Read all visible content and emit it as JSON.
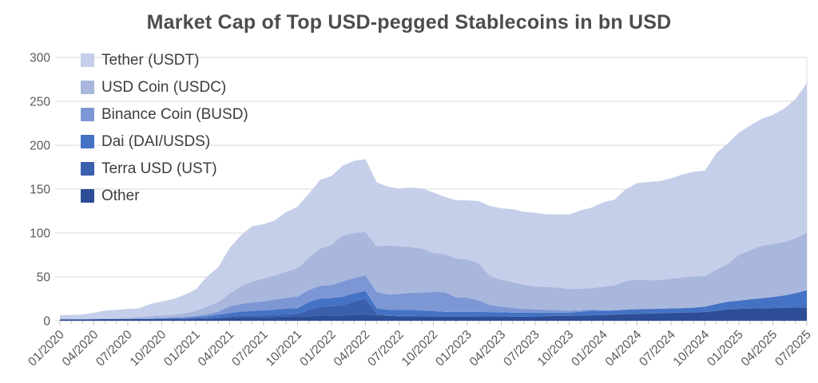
{
  "chart_data": {
    "type": "area",
    "stacked": true,
    "title": "Market Cap of Top USD-pegged Stablecoins in bn USD",
    "unit": "bn USD",
    "ylabel": "",
    "xlabel": "",
    "ylim": [
      0,
      300
    ],
    "y_ticks": [
      0,
      50,
      100,
      150,
      200,
      250,
      300
    ],
    "grid": "horizontal",
    "legend_position": "top-left-inside",
    "x_monthly_range": "01/2020 to 07/2025",
    "x_tick_labels": [
      "01/2020",
      "04/2020",
      "07/2020",
      "10/2020",
      "01/2021",
      "04/2021",
      "07/2021",
      "10/2021",
      "01/2022",
      "04/2022",
      "07/2022",
      "10/2022",
      "01/2023",
      "04/2023",
      "07/2023",
      "10/2023",
      "01/2024",
      "04/2024",
      "07/2024",
      "10/2024",
      "01/2025",
      "04/2025",
      "07/2025"
    ],
    "colors": {
      "grid": "#d9d9d9",
      "tick": "#bfbfbf",
      "axis_text": "#595959",
      "title_text": "#4d4d4d"
    },
    "series_bottom_to_top": [
      {
        "name": "Other",
        "color": "#2d4e96",
        "values": [
          1.5,
          1.5,
          1.6,
          1.7,
          1.8,
          1.8,
          1.9,
          2.0,
          2.1,
          2.1,
          2.1,
          2.2,
          2.3,
          2.5,
          2.8,
          3.5,
          4.0,
          4.2,
          4.3,
          4.5,
          4.7,
          5.0,
          5.3,
          5.8,
          6.0,
          6.3,
          6.8,
          7.3,
          6.2,
          5.6,
          5.3,
          5.2,
          5.1,
          5.0,
          4.9,
          4.8,
          4.8,
          4.9,
          5.0,
          4.9,
          4.8,
          4.7,
          4.9,
          5.2,
          5.5,
          5.7,
          6.0,
          6.3,
          6.6,
          7.0,
          7.6,
          8.0,
          8.2,
          8.5,
          9.0,
          9.3,
          9.6,
          10.0,
          11.5,
          13.0,
          13.5,
          14.0,
          14.2,
          14.5,
          14.8,
          15.0,
          15.3
        ]
      },
      {
        "name": "Terra USD (UST)",
        "color": "#3a5fad",
        "values": [
          0,
          0,
          0,
          0,
          0,
          0,
          0,
          0,
          0.03,
          0.08,
          0.12,
          0.18,
          0.19,
          0.6,
          1.1,
          1.8,
          2.0,
          1.9,
          2.0,
          2.4,
          2.6,
          2.7,
          7.2,
          10.0,
          10.8,
          11.3,
          15.4,
          17.8,
          1.5,
          0.6,
          0.4,
          0.3,
          0.3,
          0.2,
          0.2,
          0.2,
          0.1,
          0.1,
          0.1,
          0.1,
          0.1,
          0.1,
          0.1,
          0.1,
          0.1,
          0.1,
          0.1,
          0.1,
          0.1,
          0.1,
          0.1,
          0.1,
          0.1,
          0.1,
          0.1,
          0.1,
          0.1,
          0.1,
          0.1,
          0.1,
          0,
          0,
          0,
          0,
          0,
          0,
          0
        ]
      },
      {
        "name": "Dai (DAI/USDS)",
        "color": "#4472c4",
        "values": [
          0.1,
          0.1,
          0.1,
          0.1,
          0.1,
          0.15,
          0.2,
          0.4,
          0.4,
          0.6,
          1.0,
          1.1,
          1.6,
          2.2,
          3.0,
          3.6,
          4.4,
          5.1,
          5.5,
          5.8,
          6.5,
          6.6,
          8.8,
          9.4,
          9.1,
          9.9,
          9.0,
          8.9,
          6.6,
          6.3,
          6.9,
          7.0,
          6.3,
          5.8,
          5.2,
          5.1,
          5.2,
          5.2,
          4.8,
          4.7,
          4.4,
          4.3,
          4.2,
          3.9,
          3.8,
          3.6,
          4.1,
          5.3,
          4.8,
          4.6,
          4.9,
          5.0,
          5.1,
          5.1,
          5.0,
          5.0,
          5.2,
          5.9,
          7.5,
          8.5,
          9.5,
          10.5,
          11.5,
          12.5,
          14.0,
          16.5,
          19.5
        ]
      },
      {
        "name": "Binance Coin (BUSD)",
        "color": "#7d97d5",
        "values": [
          0.2,
          0.2,
          0.2,
          0.2,
          0.2,
          0.2,
          0.3,
          0.4,
          0.5,
          0.6,
          0.7,
          1.0,
          1.5,
          2.2,
          3.5,
          7.7,
          8.8,
          9.7,
          10.4,
          11.6,
          12.3,
          13.3,
          14.0,
          14.6,
          14.9,
          17.4,
          17.5,
          17.6,
          18.4,
          17.5,
          17.9,
          19.4,
          20.5,
          21.7,
          22.3,
          16.6,
          16.2,
          13.0,
          8.0,
          6.5,
          5.5,
          4.3,
          3.8,
          3.3,
          2.8,
          2.2,
          1.9,
          1.0,
          0.7,
          0.5,
          0.4,
          0.3,
          0.2,
          0.15,
          0.1,
          0.1,
          0.1,
          0.07,
          0.07,
          0.07,
          0.06,
          0.06,
          0.06,
          0.06,
          0.06,
          0.06,
          0.06
        ]
      },
      {
        "name": "USD Coin (USDC)",
        "color": "#a9b7dd",
        "values": [
          0.5,
          0.5,
          0.7,
          0.7,
          0.7,
          0.9,
          1.1,
          1.4,
          2.7,
          2.8,
          2.9,
          3.9,
          5.7,
          8.9,
          10.8,
          14.5,
          20.2,
          24.1,
          26.0,
          27.4,
          29.9,
          32.4,
          36.4,
          42.4,
          45.7,
          52.5,
          51.3,
          49.5,
          52.3,
          55.9,
          54.2,
          52.2,
          50.1,
          44.5,
          43.3,
          44.6,
          43.3,
          42.3,
          33.4,
          30.5,
          29.3,
          27.6,
          26.2,
          26.0,
          25.6,
          24.6,
          24.6,
          24.6,
          26.6,
          28.1,
          32.4,
          33.3,
          32.7,
          32.5,
          33.7,
          34.7,
          35.6,
          34.8,
          38.9,
          43.0,
          51.9,
          55.9,
          59.7,
          60.5,
          61.0,
          62.5,
          65.5
        ]
      },
      {
        "name": "Tether (USDT)",
        "color": "#c6cfe9",
        "values": [
          4.1,
          4.3,
          4.6,
          6.4,
          8.8,
          9.2,
          10.0,
          10.0,
          13.4,
          15.7,
          17.9,
          20.9,
          24.4,
          34.0,
          40.1,
          51.8,
          58.1,
          62.7,
          61.8,
          62.8,
          68.0,
          70.0,
          73.2,
          78.3,
          78.4,
          79.5,
          82.2,
          83.1,
          72.5,
          66.9,
          65.9,
          67.6,
          68.4,
          69.1,
          65.3,
          66.2,
          67.6,
          70.9,
          79.5,
          81.5,
          83.1,
          83.2,
          83.8,
          82.9,
          83.2,
          84.9,
          88.9,
          91.7,
          96.1,
          97.7,
          104.5,
          110.0,
          111.8,
          112.7,
          114.4,
          117.4,
          119.2,
          120.2,
          132.8,
          137.4,
          139.4,
          142.0,
          144.5,
          147.0,
          152.0,
          158.5,
          170.5
        ]
      }
    ],
    "legend_top_to_bottom": [
      "Tether (USDT)",
      "USD Coin (USDC)",
      "Binance Coin (BUSD)",
      "Dai (DAI/USDS)",
      "Terra USD (UST)",
      "Other"
    ]
  }
}
